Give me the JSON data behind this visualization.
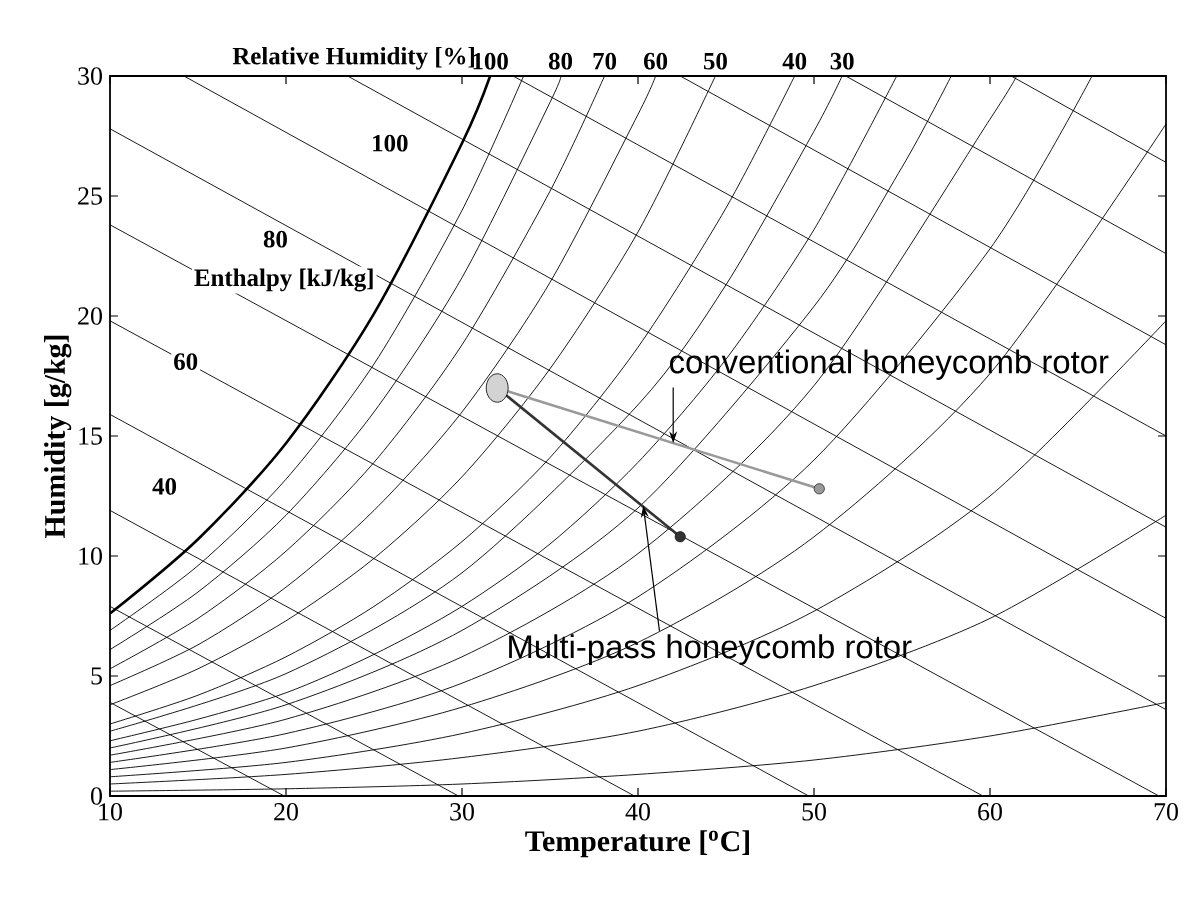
{
  "chart_data": {
    "type": "line",
    "xlabel": "Temperature [$^{o}$C]",
    "ylabel": "Humidity [g/kg]",
    "xlim": [
      10,
      70
    ],
    "ylim": [
      0,
      30
    ],
    "xticks": [
      10,
      20,
      30,
      40,
      50,
      60,
      70
    ],
    "yticks": [
      0,
      5,
      10,
      15,
      20,
      25,
      30
    ],
    "marker": "none",
    "line_style": "solid",
    "series": [
      {
        "color": "#000000",
        "x": [
          10,
          15,
          20,
          25,
          30,
          31.6
        ],
        "values": [
          7.6,
          10.7,
          14.7,
          20.1,
          27.2,
          30
        ]
      },
      {
        "color": "#000000",
        "x": [
          10,
          15,
          20,
          25,
          30,
          33.5
        ],
        "values": [
          6.9,
          9.6,
          13.2,
          18.0,
          24.4,
          30
        ]
      },
      {
        "color": "#000000",
        "x": [
          10,
          15,
          20,
          25,
          30,
          35,
          35.6
        ],
        "values": [
          6.1,
          8.5,
          11.7,
          16.0,
          21.6,
          28.9,
          30
        ]
      },
      {
        "color": "#000000",
        "x": [
          10,
          15,
          20,
          25,
          30,
          35,
          38.1
        ],
        "values": [
          5.3,
          7.4,
          10.2,
          13.9,
          18.8,
          25.2,
          30
        ]
      },
      {
        "color": "#000000",
        "x": [
          10,
          15,
          20,
          25,
          30,
          35,
          40,
          41.0
        ],
        "values": [
          4.6,
          6.3,
          8.7,
          11.9,
          16.0,
          21.4,
          28.4,
          30
        ]
      },
      {
        "color": "#000000",
        "x": [
          10,
          15,
          20,
          25,
          30,
          35,
          40,
          44.4
        ],
        "values": [
          3.8,
          5.3,
          7.3,
          9.9,
          13.3,
          17.8,
          23.5,
          30
        ]
      },
      {
        "color": "#000000",
        "x": [
          10,
          15,
          20,
          25,
          30,
          35,
          40,
          45,
          48.9
        ],
        "values": [
          3.0,
          4.2,
          5.8,
          7.9,
          10.6,
          14.1,
          18.7,
          24.5,
          30
        ]
      },
      {
        "color": "#000000",
        "x": [
          10,
          20,
          30,
          40,
          45,
          50,
          51.6
        ],
        "values": [
          2.7,
          5.1,
          9.3,
          16.3,
          21.3,
          27.7,
          30
        ]
      },
      {
        "color": "#000000",
        "x": [
          10,
          15,
          20,
          25,
          30,
          35,
          40,
          45,
          50,
          54.7
        ],
        "values": [
          2.3,
          3.2,
          4.3,
          5.9,
          7.9,
          10.5,
          13.9,
          18.2,
          23.6,
          30
        ]
      },
      {
        "color": "#000000",
        "x": [
          10,
          20,
          30,
          40,
          50,
          55,
          57.8
        ],
        "values": [
          2.0,
          3.8,
          6.9,
          12.0,
          20.4,
          26.2,
          30
        ]
      },
      {
        "color": "#000000",
        "x": [
          10,
          20,
          30,
          40,
          50,
          60,
          61.5
        ],
        "values": [
          1.7,
          3.2,
          5.8,
          10.1,
          17.1,
          28.2,
          30
        ]
      },
      {
        "color": "#000000",
        "x": [
          10,
          20,
          30,
          40,
          50,
          60,
          65.8
        ],
        "values": [
          1.4,
          2.6,
          4.7,
          8.3,
          14.0,
          22.8,
          30
        ]
      },
      {
        "color": "#000000",
        "x": [
          10,
          20,
          30,
          40,
          50,
          60,
          70
        ],
        "values": [
          1.1,
          2.0,
          3.7,
          6.4,
          10.8,
          17.6,
          28.0
        ]
      },
      {
        "color": "#000000",
        "x": [
          10,
          20,
          30,
          40,
          50,
          60,
          70
        ],
        "values": [
          0.8,
          1.4,
          2.6,
          4.6,
          7.7,
          12.5,
          19.8
        ]
      },
      {
        "color": "#000000",
        "x": [
          10,
          20,
          30,
          40,
          50,
          60,
          70
        ],
        "values": [
          0.5,
          0.9,
          1.6,
          2.7,
          4.6,
          7.4,
          11.7
        ]
      },
      {
        "color": "#000000",
        "x": [
          10,
          20,
          30,
          40,
          50,
          60,
          70
        ],
        "values": [
          0.2,
          0.3,
          0.5,
          0.9,
          1.5,
          2.5,
          3.9
        ]
      },
      {
        "color": "#000000",
        "x": [
          10,
          19.9
        ],
        "values": [
          3.9,
          0
        ]
      },
      {
        "color": "#000000",
        "x": [
          10,
          29.8
        ],
        "values": [
          7.9,
          0
        ]
      },
      {
        "color": "#000000",
        "x": [
          10,
          39.8
        ],
        "values": [
          11.9,
          0
        ]
      },
      {
        "color": "#000000",
        "x": [
          10,
          49.7
        ],
        "values": [
          15.9,
          0
        ]
      },
      {
        "color": "#000000",
        "x": [
          10,
          59.6
        ],
        "values": [
          19.8,
          0
        ]
      },
      {
        "color": "#000000",
        "x": [
          10,
          69.6
        ],
        "values": [
          23.8,
          0
        ]
      },
      {
        "color": "#000000",
        "x": [
          10,
          70
        ],
        "values": [
          27.8,
          3.6
        ]
      },
      {
        "color": "#000000",
        "x": [
          14.2,
          70
        ],
        "values": [
          30,
          7.4
        ]
      },
      {
        "color": "#000000",
        "x": [
          23.5,
          70
        ],
        "values": [
          30,
          11.2
        ]
      },
      {
        "color": "#000000",
        "x": [
          32.9,
          70
        ],
        "values": [
          30,
          15.0
        ]
      },
      {
        "color": "#000000",
        "x": [
          42.4,
          70
        ],
        "values": [
          30,
          18.8
        ]
      },
      {
        "color": "#000000",
        "x": [
          51.8,
          70
        ],
        "values": [
          30,
          22.6
        ]
      },
      {
        "color": "#000000",
        "x": [
          61.2,
          70
        ],
        "values": [
          30,
          26.4
        ]
      },
      {
        "color": "#999999",
        "marker": "circle",
        "x": [
          32.0,
          50.3
        ],
        "values": [
          17.0,
          12.8
        ]
      },
      {
        "color": "#333333",
        "marker": "circle",
        "x": [
          32.0,
          42.4
        ],
        "values": [
          17.0,
          10.8
        ]
      },
      {
        "type": "scatter",
        "color": "#d3d3d3",
        "marker": "circle",
        "x": [
          32.0
        ],
        "values": [
          17.0
        ]
      }
    ],
    "annotations": [
      "Relative Humidity [%]",
      {
        "text": "100",
        "x": 31.6,
        "y": 30
      },
      {
        "text": "80",
        "x": 35.6,
        "y": 30
      },
      {
        "text": "70",
        "x": 38.1,
        "y": 30
      },
      {
        "text": "60",
        "x": 41.0,
        "y": 30
      },
      {
        "text": "50",
        "x": 44.4,
        "y": 30
      },
      {
        "text": "40",
        "x": 48.9,
        "y": 30
      },
      {
        "text": "30",
        "x": 51.6,
        "y": 30
      },
      "Enthalpy [kJ/kg]",
      {
        "text": "100",
        "x": 25.9,
        "y": 27.2
      },
      {
        "text": "80",
        "x": 19.4,
        "y": 23.2
      },
      {
        "text": "60",
        "x": 14.3,
        "y": 18.1
      },
      {
        "text": "40",
        "x": 13.1,
        "y": 12.9
      },
      {
        "text": "conventional honeycomb rotor",
        "x": 42.0,
        "y": 14.7
      },
      {
        "text": "Multi-pass honeycomb rotor",
        "x": 40.3,
        "y": 12.1
      }
    ]
  }
}
